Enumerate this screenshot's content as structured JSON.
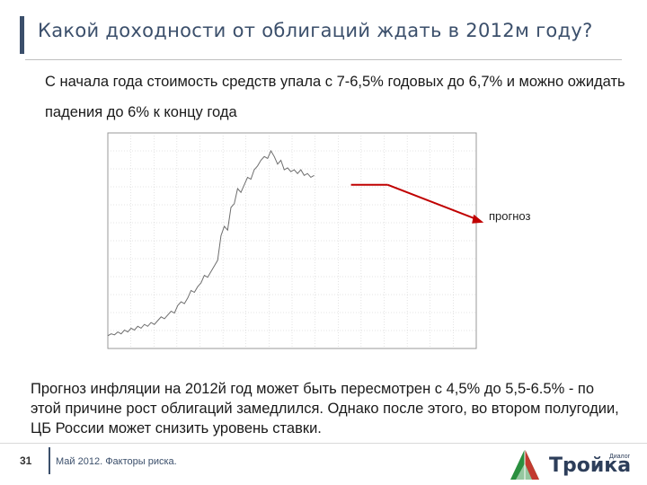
{
  "slide": {
    "title": "Какой доходности от облигаций ждать в 2012м году?",
    "subtitle": "С начала года стоимость средств упала с 7-6,5% годовых до 6,7% и можно ожидать падения до 6% к концу года",
    "forecast_label": "прогноз",
    "note": "Прогноз инфляции на 2012й год может быть пересмотрен с 4,5% до 5,5-6.5% - по этой причине рост облигаций замедлился. Однако после этого, во втором полугодии, ЦБ России может снизить уровень ставки.",
    "page_number": "31",
    "footer": "Май 2012. Факторы риска.",
    "logo_text": "Тройка",
    "logo_sup": "Диалог"
  },
  "colors": {
    "title": "#3b4f6b",
    "forecast_arrow": "#c00000",
    "series_line": "#6e6e6e",
    "grid": "#c8c8c8"
  },
  "chart_data": {
    "type": "line",
    "series": [
      {
        "values": [
          0.02,
          0.03,
          0.025,
          0.04,
          0.03,
          0.05,
          0.04,
          0.06,
          0.05,
          0.07,
          0.06,
          0.08,
          0.07,
          0.09,
          0.08,
          0.1,
          0.12,
          0.11,
          0.13,
          0.15,
          0.14,
          0.18,
          0.2,
          0.19,
          0.22,
          0.26,
          0.25,
          0.28,
          0.3,
          0.34,
          0.33,
          0.36,
          0.39,
          0.42,
          0.55,
          0.6,
          0.58,
          0.7,
          0.72,
          0.8,
          0.78,
          0.82,
          0.86,
          0.85,
          0.9,
          0.92,
          0.95,
          0.97,
          0.96,
          1.0,
          0.97,
          0.93,
          0.95,
          0.9,
          0.91,
          0.89,
          0.9,
          0.88,
          0.9,
          0.87,
          0.88,
          0.86,
          0.87
        ]
      }
    ],
    "forecast": {
      "start": 0.82,
      "end": 0.62
    },
    "grid": true
  }
}
